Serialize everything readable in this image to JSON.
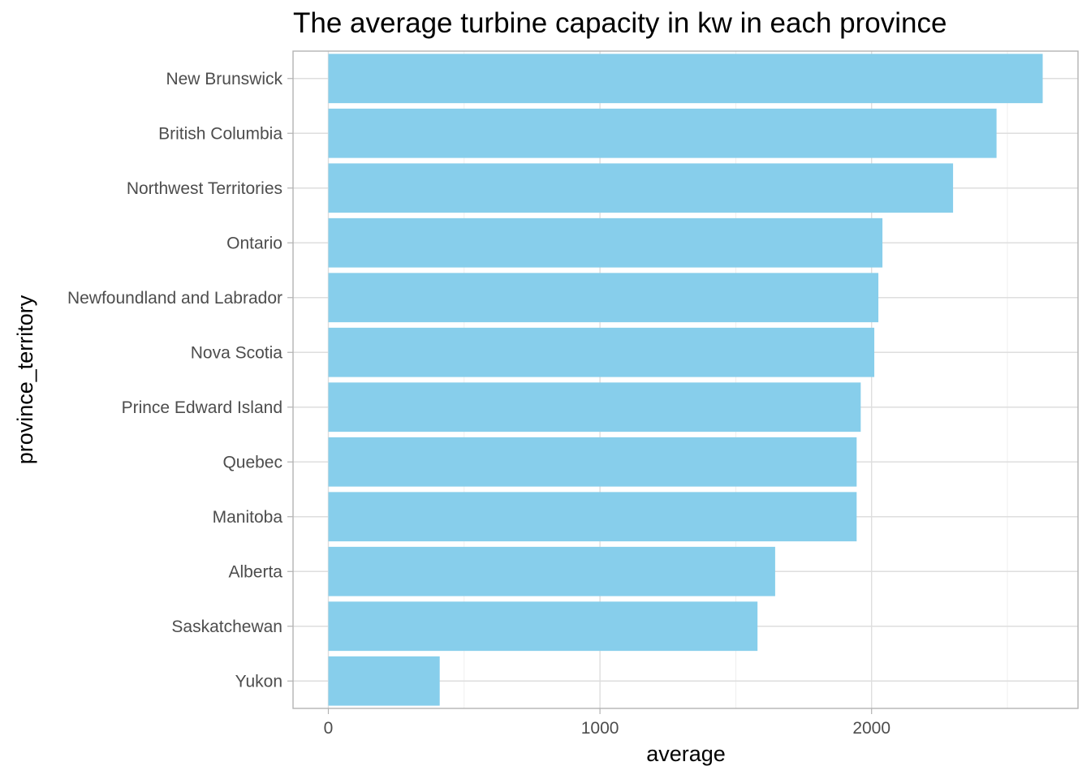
{
  "chart_data": {
    "type": "bar",
    "orientation": "horizontal",
    "title": "The average turbine capacity in kw in each province",
    "xlabel": "average",
    "ylabel": "province_territory",
    "categories": [
      "New Brunswick",
      "British Columbia",
      "Northwest Territories",
      "Ontario",
      "Newfoundland and Labrador",
      "Nova Scotia",
      "Prince Edward Island",
      "Quebec",
      "Manitoba",
      "Alberta",
      "Saskatchewan",
      "Yukon"
    ],
    "values": [
      2630,
      2460,
      2300,
      2040,
      2025,
      2010,
      1960,
      1945,
      1945,
      1645,
      1580,
      410
    ],
    "xlim": [
      -130,
      2760
    ],
    "xticks": [
      0,
      1000,
      2000
    ],
    "xtick_labels": [
      "0",
      "1000",
      "2000"
    ],
    "bar_color": "#87ceeb",
    "grid": true
  }
}
